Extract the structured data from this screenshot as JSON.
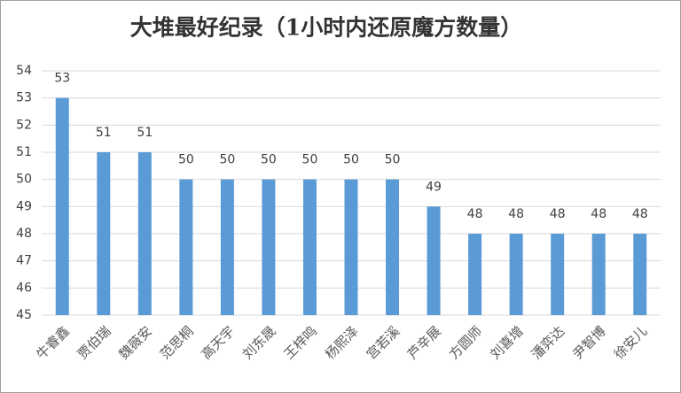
{
  "chart_data": {
    "type": "bar",
    "title": "大堆最好纪录（1小时内还原魔方数量）",
    "categories": [
      "牛睿鑫",
      "贾伯瑞",
      "魏薇安",
      "范思桐",
      "高天宇",
      "刘东晟",
      "王梓鸣",
      "杨熙泽",
      "宫若溪",
      "芦辛展",
      "方圆师",
      "刘喜增",
      "潘弈达",
      "尹智博",
      "徐安儿"
    ],
    "values": [
      53,
      51,
      51,
      50,
      50,
      50,
      50,
      50,
      50,
      49,
      48,
      48,
      48,
      48,
      48
    ],
    "color": "#5b9bd5",
    "ylim": [
      45,
      54
    ],
    "yticks": [
      45,
      46,
      47,
      48,
      49,
      50,
      51,
      52,
      53,
      54
    ],
    "grid": true
  }
}
